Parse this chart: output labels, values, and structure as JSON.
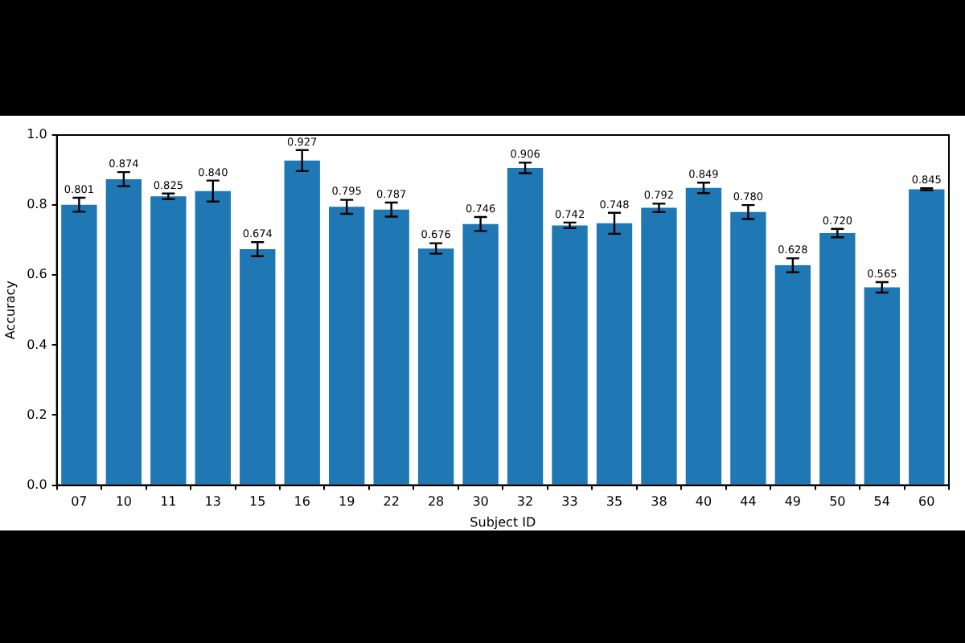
{
  "chart_data": {
    "type": "bar",
    "xlabel": "Subject ID",
    "ylabel": "Accuracy",
    "categories": [
      "07",
      "10",
      "11",
      "13",
      "15",
      "16",
      "19",
      "22",
      "28",
      "30",
      "32",
      "33",
      "35",
      "38",
      "40",
      "44",
      "49",
      "50",
      "54",
      "60"
    ],
    "values": [
      0.801,
      0.874,
      0.825,
      0.84,
      0.674,
      0.927,
      0.795,
      0.787,
      0.676,
      0.746,
      0.906,
      0.742,
      0.748,
      0.792,
      0.849,
      0.78,
      0.628,
      0.72,
      0.565,
      0.845
    ],
    "errors": [
      0.02,
      0.02,
      0.008,
      0.03,
      0.02,
      0.03,
      0.02,
      0.02,
      0.015,
      0.02,
      0.015,
      0.008,
      0.03,
      0.012,
      0.015,
      0.02,
      0.02,
      0.012,
      0.015,
      0.003
    ],
    "value_labels": [
      "0.801",
      "0.874",
      "0.825",
      "0.840",
      "0.674",
      "0.927",
      "0.795",
      "0.787",
      "0.676",
      "0.746",
      "0.906",
      "0.742",
      "0.748",
      "0.792",
      "0.849",
      "0.780",
      "0.628",
      "0.720",
      "0.565",
      "0.845"
    ],
    "color": "#1f77b4",
    "ylim": [
      0,
      1
    ],
    "yticks": [
      {
        "value": 0,
        "label": "0.0"
      },
      {
        "value": 0.2,
        "label": "0.2"
      },
      {
        "value": 0.4,
        "label": "0.4"
      },
      {
        "value": 0.6,
        "label": "0.6"
      },
      {
        "value": 0.8,
        "label": "0.8"
      },
      {
        "value": 1,
        "label": "1.0"
      }
    ],
    "grid": false,
    "legend": false
  }
}
